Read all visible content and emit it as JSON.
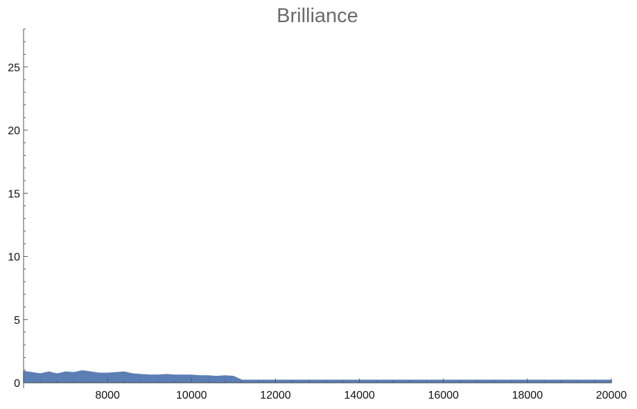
{
  "chart_data": {
    "type": "area",
    "title": "Brilliance",
    "xlabel": "",
    "ylabel": "",
    "xlim": [
      6000,
      20000
    ],
    "ylim": [
      0,
      28
    ],
    "x_ticks": [
      8000,
      10000,
      12000,
      14000,
      16000,
      18000,
      20000
    ],
    "x_tick_labels": [
      "8000",
      "10000",
      "12000",
      "14000",
      "16000",
      "18000",
      "20000"
    ],
    "y_ticks": [
      0,
      5,
      10,
      15,
      20,
      25
    ],
    "y_tick_labels": [
      "0",
      "5",
      "10",
      "15",
      "20",
      "25"
    ],
    "grid": false,
    "legend": "none",
    "series": [
      {
        "color": "#5b7fb5",
        "x": [
          6000,
          6200,
          6400,
          6600,
          6800,
          7000,
          7200,
          7400,
          7600,
          7800,
          8000,
          8200,
          8400,
          8600,
          8800,
          9000,
          9200,
          9400,
          9600,
          9800,
          10000,
          10200,
          10400,
          10600,
          10800,
          11000,
          11100,
          11200,
          11300,
          12000,
          13000,
          14000,
          15000,
          16000,
          17000,
          18000,
          19000,
          20000
        ],
        "values": [
          0.9,
          0.8,
          0.7,
          0.85,
          0.7,
          0.85,
          0.8,
          0.95,
          0.85,
          0.75,
          0.75,
          0.8,
          0.85,
          0.7,
          0.65,
          0.6,
          0.6,
          0.65,
          0.6,
          0.6,
          0.6,
          0.55,
          0.55,
          0.5,
          0.55,
          0.5,
          0.35,
          0.2,
          0.2,
          0.2,
          0.2,
          0.2,
          0.2,
          0.2,
          0.2,
          0.2,
          0.2,
          0.2
        ]
      }
    ]
  }
}
